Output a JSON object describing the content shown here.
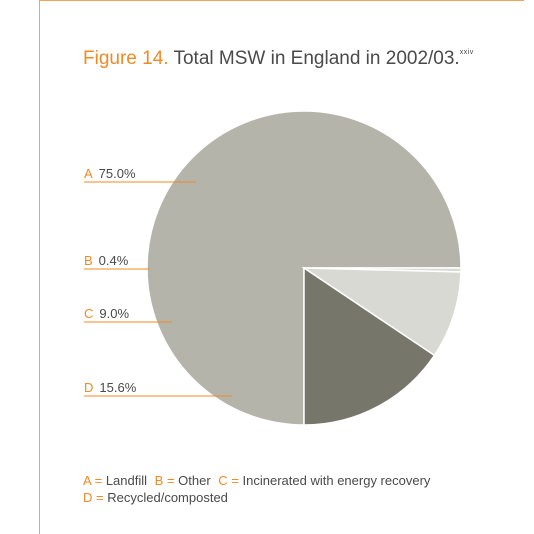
{
  "header": {
    "figure_label": "Figure 14.",
    "title_text": "Total MSW in England in 2002/03.",
    "footnote_ref": "xxiv"
  },
  "chart_data": {
    "type": "pie",
    "categories": [
      "A",
      "B",
      "C",
      "D"
    ],
    "values": [
      75.0,
      0.4,
      9.0,
      15.6
    ],
    "value_labels": [
      "75.0%",
      "0.4%",
      "9.0%",
      "15.6%"
    ],
    "colors": [
      "#b5b4ab",
      "#d8d9d3",
      "#d8d9d3",
      "#76766b"
    ],
    "legend_placement": "bottom"
  },
  "legend": {
    "items": [
      {
        "key": "A",
        "eq": "=",
        "text": "Landfill"
      },
      {
        "key": "B",
        "eq": "=",
        "text": "Other"
      },
      {
        "key": "C",
        "eq": "=",
        "text": "Incinerated with energy recovery"
      },
      {
        "key": "D",
        "eq": "=",
        "text": "Recycled/composted"
      }
    ]
  },
  "colors": {
    "accent": "#f08a24",
    "frame": "#f0a35a",
    "text": "#4a4a4a"
  }
}
